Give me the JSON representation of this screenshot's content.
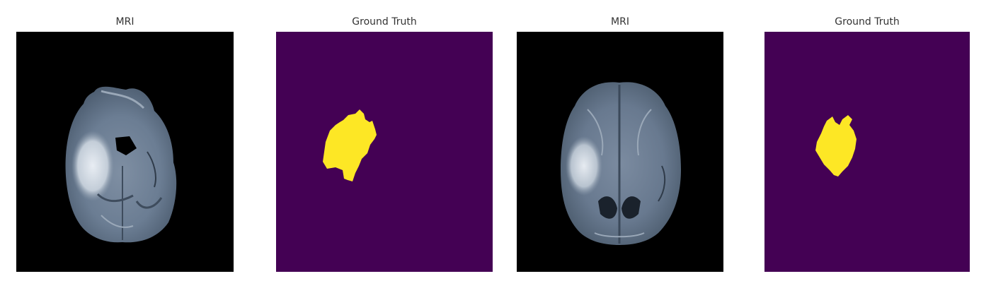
{
  "panels": [
    {
      "title": "MRI",
      "kind": "mri",
      "background": "#000000"
    },
    {
      "title": "Ground Truth",
      "kind": "mask",
      "background": "#440154",
      "mask_color": "#fde725"
    },
    {
      "title": "MRI",
      "kind": "mri",
      "background": "#000000"
    },
    {
      "title": "Ground Truth",
      "kind": "mask",
      "background": "#440154",
      "mask_color": "#fde725"
    }
  ]
}
